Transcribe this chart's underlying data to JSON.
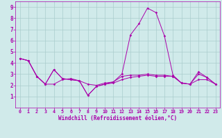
{
  "xlabel": "Windchill (Refroidissement éolien,°C)",
  "bg_color": "#d0eaea",
  "line_color": "#aa00aa",
  "grid_color": "#aacccc",
  "xlim": [
    -0.5,
    23.5
  ],
  "ylim": [
    0,
    9.5
  ],
  "xticks": [
    0,
    1,
    2,
    3,
    4,
    5,
    6,
    7,
    8,
    9,
    10,
    11,
    12,
    13,
    14,
    15,
    16,
    17,
    18,
    19,
    20,
    21,
    22,
    23
  ],
  "yticks": [
    1,
    2,
    3,
    4,
    5,
    6,
    7,
    8,
    9
  ],
  "lines": [
    {
      "x": [
        0,
        1,
        2,
        3,
        4,
        5,
        6,
        7,
        8,
        9,
        10,
        11,
        12,
        13,
        14,
        15,
        16,
        17,
        18,
        19,
        20,
        21,
        22,
        23
      ],
      "y": [
        4.4,
        4.2,
        2.8,
        2.1,
        3.4,
        2.6,
        2.5,
        2.4,
        1.1,
        1.9,
        2.1,
        2.3,
        3.0,
        6.5,
        7.5,
        8.9,
        8.5,
        6.4,
        2.9,
        2.2,
        2.1,
        3.2,
        2.7,
        2.1
      ]
    },
    {
      "x": [
        0,
        1,
        2,
        3,
        4,
        5,
        6,
        7,
        8,
        9,
        10,
        11,
        12,
        13,
        14,
        15,
        16,
        17,
        18,
        19,
        20,
        21,
        22,
        23
      ],
      "y": [
        4.4,
        4.2,
        2.8,
        2.1,
        2.1,
        2.5,
        2.6,
        2.4,
        2.1,
        2.0,
        2.2,
        2.3,
        2.8,
        2.9,
        2.9,
        3.0,
        2.9,
        2.9,
        2.8,
        2.2,
        2.1,
        2.5,
        2.5,
        2.1
      ]
    },
    {
      "x": [
        0,
        1,
        2,
        3,
        4,
        5,
        6,
        7,
        8,
        9,
        10,
        11,
        12,
        13,
        14,
        15,
        16,
        17,
        18,
        19,
        20,
        21,
        22,
        23
      ],
      "y": [
        4.4,
        4.2,
        2.8,
        2.1,
        3.4,
        2.6,
        2.5,
        2.4,
        1.1,
        1.9,
        2.1,
        2.2,
        2.5,
        2.7,
        2.8,
        2.9,
        2.8,
        2.8,
        2.8,
        2.2,
        2.1,
        3.0,
        2.7,
        2.1
      ]
    }
  ],
  "xlabel_fontsize": 5.5,
  "tick_fontsize": 4.8,
  "ytick_fontsize": 5.5
}
